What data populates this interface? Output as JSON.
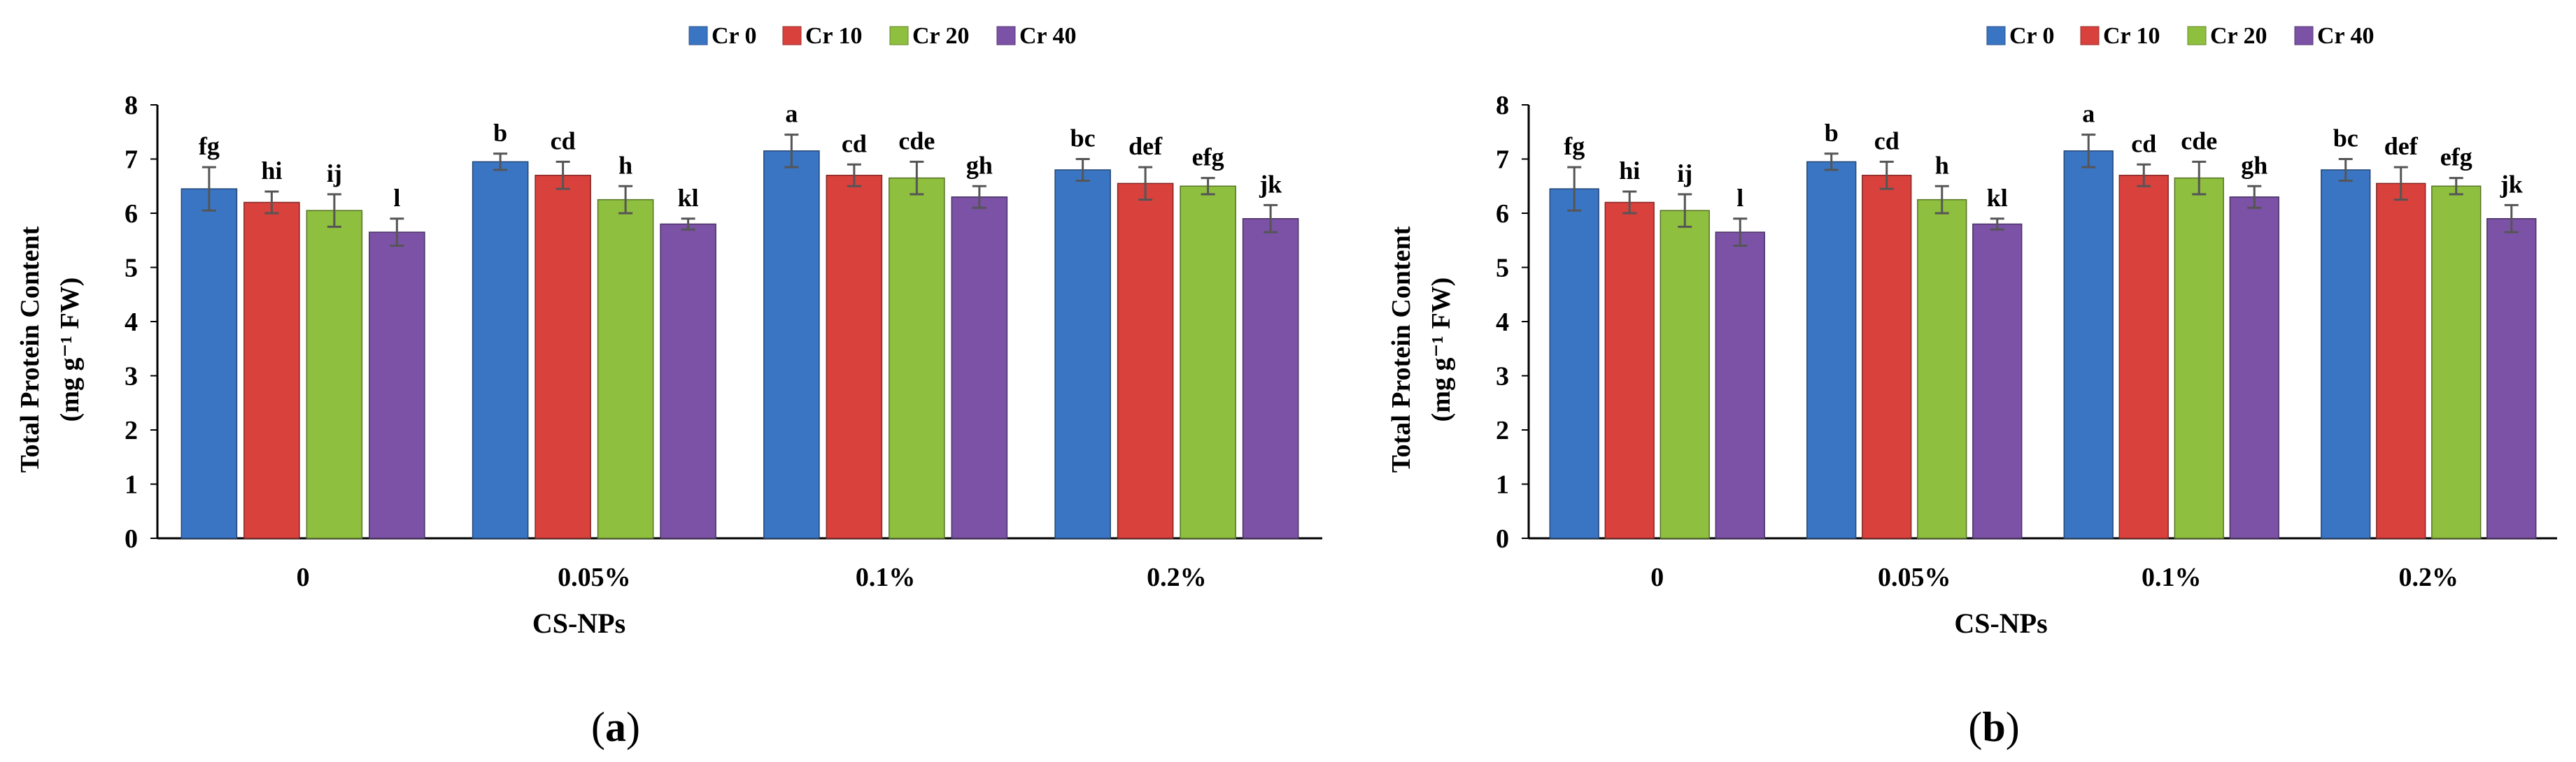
{
  "chart_data": [
    {
      "type": "bar",
      "panel_label": "a",
      "title": "",
      "xlabel": "CS-NPs",
      "ylabel_line1": "Total Protein Content",
      "ylabel_line2": "(mg g⁻¹ FW)",
      "ylim": [
        0,
        8
      ],
      "yticks": [
        0,
        1,
        2,
        3,
        4,
        5,
        6,
        7,
        8
      ],
      "legend_position": "top-center",
      "categories": [
        "0",
        "0.05%",
        "0.1%",
        "0.2%"
      ],
      "series": [
        {
          "name": "Cr 0",
          "color": "#3a75c4",
          "values": [
            6.45,
            6.95,
            7.15,
            6.8
          ],
          "errors": [
            0.4,
            0.15,
            0.3,
            0.2
          ],
          "letters": [
            "fg",
            "b",
            "a",
            "bc"
          ]
        },
        {
          "name": "Cr 10",
          "color": "#d9413d",
          "values": [
            6.2,
            6.7,
            6.7,
            6.55
          ],
          "errors": [
            0.2,
            0.25,
            0.2,
            0.3
          ],
          "letters": [
            "hi",
            "cd",
            "cd",
            "def"
          ]
        },
        {
          "name": "Cr 20",
          "color": "#8fbf3e",
          "values": [
            6.05,
            6.25,
            6.65,
            6.5
          ],
          "errors": [
            0.3,
            0.25,
            0.3,
            0.15
          ],
          "letters": [
            "ij",
            "h",
            "cde",
            "efg"
          ]
        },
        {
          "name": "Cr 40",
          "color": "#7b52a6",
          "values": [
            5.65,
            5.8,
            6.3,
            5.9
          ],
          "errors": [
            0.25,
            0.1,
            0.2,
            0.25
          ],
          "letters": [
            "l",
            "kl",
            "gh",
            "jk"
          ]
        }
      ]
    },
    {
      "type": "bar",
      "panel_label": "b",
      "title": "",
      "xlabel": "CS-NPs",
      "ylabel_line1": "Total Protein Content",
      "ylabel_line2": "(mg g⁻¹ FW)",
      "ylim": [
        0,
        8
      ],
      "yticks": [
        0,
        1,
        2,
        3,
        4,
        5,
        6,
        7,
        8
      ],
      "legend_position": "top-center",
      "categories": [
        "0",
        "0.05%",
        "0.1%",
        "0.2%"
      ],
      "series": [
        {
          "name": "Cr 0",
          "color": "#3a75c4",
          "values": [
            6.45,
            6.95,
            7.15,
            6.8
          ],
          "errors": [
            0.4,
            0.15,
            0.3,
            0.2
          ],
          "letters": [
            "fg",
            "b",
            "a",
            "bc"
          ]
        },
        {
          "name": "Cr 10",
          "color": "#d9413d",
          "values": [
            6.2,
            6.7,
            6.7,
            6.55
          ],
          "errors": [
            0.2,
            0.25,
            0.2,
            0.3
          ],
          "letters": [
            "hi",
            "cd",
            "cd",
            "def"
          ]
        },
        {
          "name": "Cr 20",
          "color": "#8fbf3e",
          "values": [
            6.05,
            6.25,
            6.65,
            6.5
          ],
          "errors": [
            0.3,
            0.25,
            0.3,
            0.15
          ],
          "letters": [
            "ij",
            "h",
            "cde",
            "efg"
          ]
        },
        {
          "name": "Cr 40",
          "color": "#7b52a6",
          "values": [
            5.65,
            5.8,
            6.3,
            5.9
          ],
          "errors": [
            0.25,
            0.1,
            0.2,
            0.25
          ],
          "letters": [
            "l",
            "kl",
            "gh",
            "jk"
          ]
        }
      ]
    }
  ]
}
